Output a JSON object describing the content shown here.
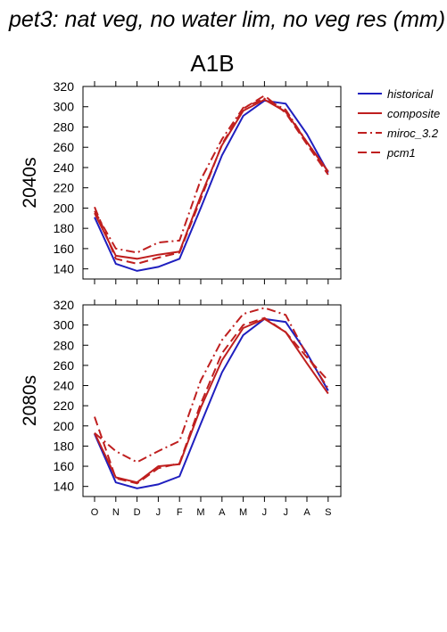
{
  "title": "pet3: nat veg, no water lim, no veg res (mm)",
  "scenario": "A1B",
  "chart_data": {
    "type": "line",
    "categories": [
      "O",
      "N",
      "D",
      "J",
      "F",
      "M",
      "A",
      "M",
      "J",
      "J",
      "A",
      "S"
    ],
    "legend_position": "top-right",
    "legend": [
      {
        "name": "historical",
        "color": "#1f1fbf",
        "dash": "solid"
      },
      {
        "name": "composite",
        "color": "#bf1f1f",
        "dash": "solid"
      },
      {
        "name": "miroc_3.2",
        "color": "#bf1f1f",
        "dash": "dashdot"
      },
      {
        "name": "pcm1",
        "color": "#bf1f1f",
        "dash": "dash"
      }
    ],
    "panels": [
      {
        "label": "2040s",
        "ylim": [
          130,
          320
        ],
        "yticks": [
          140,
          160,
          180,
          200,
          220,
          240,
          260,
          280,
          300,
          320
        ],
        "series": [
          {
            "name": "historical",
            "values": [
              191,
              145,
              138,
              142,
              150,
              200,
              252,
              291,
              306,
              303,
              273,
              235
            ]
          },
          {
            "name": "composite",
            "values": [
              195,
              153,
              150,
              154,
              157,
              212,
              262,
              296,
              307,
              295,
              265,
              236
            ]
          },
          {
            "name": "miroc_3.2",
            "values": [
              197,
              160,
              156,
              166,
              168,
              228,
              268,
              299,
              308,
              297,
              265,
              236
            ]
          },
          {
            "name": "pcm1",
            "values": [
              201,
              150,
              145,
              151,
              156,
              209,
              263,
              298,
              311,
              294,
              263,
              233
            ]
          }
        ]
      },
      {
        "label": "2080s",
        "ylim": [
          130,
          320
        ],
        "yticks": [
          140,
          160,
          180,
          200,
          220,
          240,
          260,
          280,
          300,
          320
        ],
        "series": [
          {
            "name": "historical",
            "values": [
              192,
              144,
              138,
              142,
              150,
              202,
              253,
              290,
              306,
              303,
              272,
              235
            ]
          },
          {
            "name": "composite",
            "values": [
              193,
              149,
              144,
              160,
              162,
              218,
              265,
              297,
              306,
              293,
              262,
              232
            ]
          },
          {
            "name": "miroc_3.2",
            "values": [
              193,
              175,
              164,
              175,
              185,
              245,
              285,
              311,
              317,
              310,
              270,
              237
            ]
          },
          {
            "name": "pcm1",
            "values": [
              209,
              148,
              143,
              158,
              163,
              222,
              272,
              300,
              307,
              293,
              268,
              245
            ]
          }
        ]
      }
    ]
  }
}
